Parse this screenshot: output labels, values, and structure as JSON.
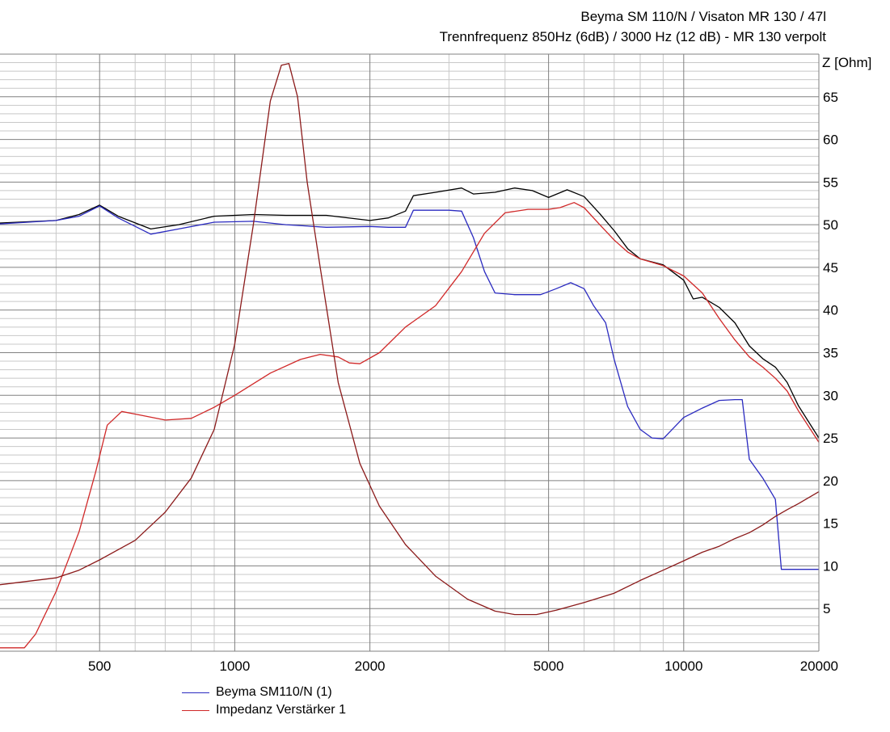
{
  "header": {
    "title": "Beyma SM 110/N / Visaton MR 130 / 47l",
    "subtitle": "Trennfrequenz 850Hz (6dB) / 3000 Hz (12 dB) - MR 130 verpolt"
  },
  "chart_data": {
    "type": "line",
    "x_scale": "log",
    "xlim": [
      300,
      20000
    ],
    "ylim": [
      0,
      70
    ],
    "ylabel": "Z [Ohm]",
    "x_ticks": [
      500,
      1000,
      2000,
      5000,
      10000,
      20000
    ],
    "y_ticks": [
      5,
      10,
      15,
      20,
      25,
      30,
      35,
      40,
      45,
      50,
      55,
      60,
      65
    ],
    "grid": true,
    "legend_position": "bottom-left",
    "colors": {
      "grid_major": "#808080",
      "grid_minor": "#c8c8c8",
      "black": "#000000",
      "blue": "#2a2ac0",
      "red": "#d02828",
      "darkred": "#8b1a1a"
    },
    "series": [
      {
        "color": "#000000",
        "points": [
          [
            300,
            50.2
          ],
          [
            400,
            50.5
          ],
          [
            450,
            51.2
          ],
          [
            500,
            52.3
          ],
          [
            550,
            51
          ],
          [
            650,
            49.5
          ],
          [
            750,
            50
          ],
          [
            900,
            51
          ],
          [
            1100,
            51.2
          ],
          [
            1300,
            51.1
          ],
          [
            1600,
            51.1
          ],
          [
            2000,
            50.5
          ],
          [
            2200,
            50.8
          ],
          [
            2400,
            51.6
          ],
          [
            2500,
            53.4
          ],
          [
            2800,
            53.8
          ],
          [
            3200,
            54.3
          ],
          [
            3400,
            53.6
          ],
          [
            3800,
            53.8
          ],
          [
            4200,
            54.3
          ],
          [
            4600,
            54
          ],
          [
            5000,
            53.2
          ],
          [
            5500,
            54.1
          ],
          [
            6000,
            53.3
          ],
          [
            6500,
            51.3
          ],
          [
            7000,
            49.3
          ],
          [
            7500,
            47.2
          ],
          [
            8000,
            46
          ],
          [
            9000,
            45.3
          ],
          [
            10000,
            43.5
          ],
          [
            10500,
            41.3
          ],
          [
            11000,
            41.5
          ],
          [
            12000,
            40.3
          ],
          [
            13000,
            38.5
          ],
          [
            14000,
            35.8
          ],
          [
            15000,
            34.3
          ],
          [
            16000,
            33.3
          ],
          [
            17000,
            31.5
          ],
          [
            18000,
            28.8
          ],
          [
            20000,
            25
          ]
        ]
      },
      {
        "name": "Beyma SM110/N (1)",
        "color": "#2a2ac0",
        "points": [
          [
            300,
            50.1
          ],
          [
            400,
            50.5
          ],
          [
            450,
            51
          ],
          [
            500,
            52.2
          ],
          [
            550,
            50.8
          ],
          [
            650,
            48.9
          ],
          [
            750,
            49.5
          ],
          [
            900,
            50.3
          ],
          [
            1100,
            50.4
          ],
          [
            1300,
            50
          ],
          [
            1600,
            49.7
          ],
          [
            2000,
            49.8
          ],
          [
            2200,
            49.7
          ],
          [
            2400,
            49.7
          ],
          [
            2500,
            51.7
          ],
          [
            3000,
            51.7
          ],
          [
            3200,
            51.6
          ],
          [
            3400,
            48.5
          ],
          [
            3600,
            44.5
          ],
          [
            3800,
            42
          ],
          [
            4200,
            41.8
          ],
          [
            4800,
            41.8
          ],
          [
            5200,
            42.5
          ],
          [
            5600,
            43.2
          ],
          [
            6000,
            42.5
          ],
          [
            6300,
            40.5
          ],
          [
            6700,
            38.5
          ],
          [
            7000,
            34.2
          ],
          [
            7500,
            28.7
          ],
          [
            8000,
            26
          ],
          [
            8500,
            25
          ],
          [
            9000,
            24.9
          ],
          [
            10000,
            27.4
          ],
          [
            11000,
            28.5
          ],
          [
            12000,
            29.4
          ],
          [
            13000,
            29.5
          ],
          [
            13500,
            29.5
          ],
          [
            14000,
            22.5
          ],
          [
            15000,
            20.3
          ],
          [
            16000,
            17.8
          ],
          [
            16500,
            9.6
          ],
          [
            20000,
            9.6
          ]
        ]
      },
      {
        "name": "Impedanz Verstärker 1",
        "color": "#d02828",
        "points": [
          [
            300,
            0.4
          ],
          [
            340,
            0.4
          ],
          [
            360,
            2
          ],
          [
            400,
            7
          ],
          [
            450,
            14
          ],
          [
            490,
            21
          ],
          [
            520,
            26.5
          ],
          [
            560,
            28.1
          ],
          [
            600,
            27.8
          ],
          [
            700,
            27.1
          ],
          [
            800,
            27.3
          ],
          [
            900,
            28.6
          ],
          [
            1000,
            30
          ],
          [
            1200,
            32.6
          ],
          [
            1400,
            34.2
          ],
          [
            1550,
            34.8
          ],
          [
            1700,
            34.5
          ],
          [
            1800,
            33.8
          ],
          [
            1900,
            33.7
          ],
          [
            2100,
            35
          ],
          [
            2400,
            38
          ],
          [
            2800,
            40.5
          ],
          [
            3200,
            44.5
          ],
          [
            3600,
            49
          ],
          [
            4000,
            51.4
          ],
          [
            4500,
            51.8
          ],
          [
            5000,
            51.8
          ],
          [
            5300,
            52
          ],
          [
            5700,
            52.6
          ],
          [
            6000,
            52
          ],
          [
            6500,
            50
          ],
          [
            7000,
            48.2
          ],
          [
            7500,
            46.8
          ],
          [
            8000,
            46
          ],
          [
            9000,
            45.2
          ],
          [
            10000,
            44
          ],
          [
            11000,
            42
          ],
          [
            12000,
            39
          ],
          [
            13000,
            36.5
          ],
          [
            14000,
            34.5
          ],
          [
            15000,
            33.3
          ],
          [
            16000,
            32
          ],
          [
            17000,
            30.5
          ],
          [
            18000,
            28.2
          ],
          [
            20000,
            24.5
          ]
        ]
      },
      {
        "color": "#8b1a1a",
        "points": [
          [
            300,
            7.8
          ],
          [
            400,
            8.6
          ],
          [
            450,
            9.5
          ],
          [
            500,
            10.7
          ],
          [
            600,
            13
          ],
          [
            700,
            16.3
          ],
          [
            800,
            20.3
          ],
          [
            900,
            26
          ],
          [
            1000,
            36
          ],
          [
            1100,
            50
          ],
          [
            1200,
            64.5
          ],
          [
            1270,
            68.7
          ],
          [
            1320,
            68.9
          ],
          [
            1380,
            65
          ],
          [
            1450,
            55
          ],
          [
            1550,
            45
          ],
          [
            1700,
            31.5
          ],
          [
            1900,
            22
          ],
          [
            2100,
            17
          ],
          [
            2400,
            12.5
          ],
          [
            2800,
            8.8
          ],
          [
            3300,
            6.1
          ],
          [
            3800,
            4.7
          ],
          [
            4200,
            4.3
          ],
          [
            4700,
            4.3
          ],
          [
            5200,
            4.8
          ],
          [
            6000,
            5.7
          ],
          [
            7000,
            6.8
          ],
          [
            8000,
            8.3
          ],
          [
            9000,
            9.5
          ],
          [
            10000,
            10.6
          ],
          [
            11000,
            11.6
          ],
          [
            12000,
            12.3
          ],
          [
            13000,
            13.2
          ],
          [
            14000,
            13.9
          ],
          [
            15000,
            14.8
          ],
          [
            16000,
            15.8
          ],
          [
            17000,
            16.6
          ],
          [
            18000,
            17.3
          ],
          [
            20000,
            18.7
          ]
        ]
      }
    ]
  }
}
